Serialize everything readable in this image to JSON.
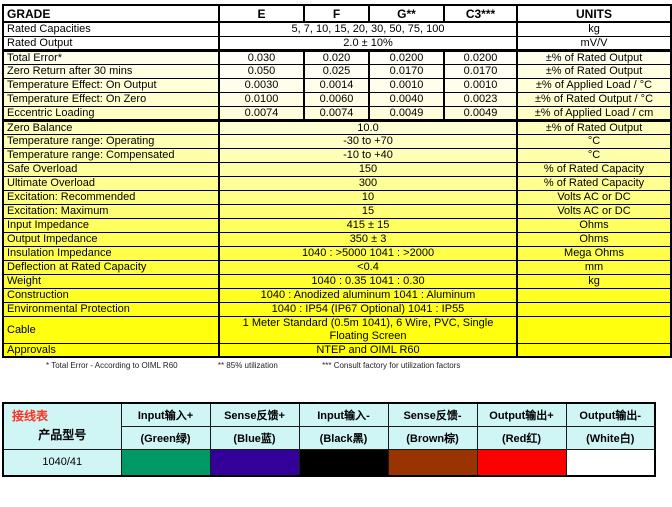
{
  "spec_table": {
    "header": {
      "grade": "GRADE",
      "cols": [
        "E",
        "F",
        "G**",
        "C3***"
      ],
      "units": "UNITS"
    },
    "rows": [
      {
        "label": "Rated Capacities",
        "value": "5, 7, 10, 15, 20, 30, 50, 75, 100",
        "unit": "kg",
        "bg": "#FFFFFF",
        "vbg": "#FFFFFF"
      },
      {
        "label": "Rated Output",
        "value": "2.0 ± 10%",
        "unit": "mV/V",
        "bg": "#FFFFFF",
        "vbg": "#FFFFFF",
        "tb": true
      },
      {
        "label": "Total Error*",
        "values": [
          "0.030",
          "0.020",
          "0.0200",
          "0.0200"
        ],
        "unit": "±% of Rated Output",
        "bg": "#FFFFEC",
        "vbg": "#FFFEF8"
      },
      {
        "label": "Zero Return after 30 mins",
        "values": [
          "0.050",
          "0.025",
          "0.0170",
          "0.0170"
        ],
        "unit": "±% of Rated Output",
        "bg": "#FFFFE2",
        "vbg": "#FFFEF2"
      },
      {
        "label": "Temperature Effect: On Output",
        "values": [
          "0.0030",
          "0.0014",
          "0.0010",
          "0.0010"
        ],
        "unit": "±% of Applied Load / °C",
        "bg": "#FFFFD8",
        "vbg": "#FFFEEC"
      },
      {
        "label": "Temperature Effect: On Zero",
        "values": [
          "0.0100",
          "0.0060",
          "0.0040",
          "0.0023"
        ],
        "unit": "±% of Rated Output / °C",
        "bg": "#FFFFCE",
        "vbg": "#FFFDE4"
      },
      {
        "label": "Eccentric Loading",
        "values": [
          "0.0074",
          "0.0074",
          "0.0049",
          "0.0049"
        ],
        "unit": "±% of Applied Load / cm",
        "bg": "#FFFFC4",
        "vbg": "#FFFCDC",
        "tb": true
      },
      {
        "label": "Zero Balance",
        "value": "10.0",
        "unit": "±% of Rated Output",
        "bg": "#FFFFBE",
        "vbg": "#FFFFD4"
      },
      {
        "label": "Temperature range: Operating",
        "value": "-30 to +70",
        "unit": "°C",
        "bg": "#FFFFB4",
        "vbg": "#FFFFC6"
      },
      {
        "label": "Temperature range: Compensated",
        "value": "-10 to +40",
        "unit": "°C",
        "bg": "#FFFFAA",
        "vbg": "#FFFFB8"
      },
      {
        "label": "Safe Overload",
        "value": "150",
        "unit": "% of Rated Capacity",
        "bg": "#FFFF9E",
        "vbg": "#FFFFA8"
      },
      {
        "label": "Ultimate Overload",
        "value": "300",
        "unit": "% of Rated Capacity",
        "bg": "#FFFF92",
        "vbg": "#FFFF98"
      },
      {
        "label": "Excitation: Recommended",
        "value": "10",
        "unit": "Volts AC or DC",
        "bg": "#FFFF84",
        "vbg": "#FFFF88"
      },
      {
        "label": "Excitation: Maximum",
        "value": "15",
        "unit": "Volts AC or DC",
        "bg": "#FFFF76",
        "vbg": "#FFFF78"
      },
      {
        "label": "Input Impedance",
        "value": "415 ± 15",
        "unit": "Ohms",
        "bg": "#FFFF60",
        "vbg": "#FFFF60"
      },
      {
        "label": "Output Impedance",
        "value": "350 ± 3",
        "unit": "Ohms",
        "bg": "#FFFF55",
        "vbg": "#FFFF55"
      },
      {
        "label": "Insulation Impedance",
        "value": "1040 : >5000 1041 : >2000",
        "unit": "Mega Ohms",
        "bg": "#FFFF4A",
        "vbg": "#FFFF4A"
      },
      {
        "label": "Deflection at Rated Capacity",
        "value": "<0.4",
        "unit": "mm",
        "bg": "#FFFF3E",
        "vbg": "#FFFF3E"
      },
      {
        "label": "Weight",
        "value": "1040 : 0.35 1041 : 0.30",
        "unit": "kg",
        "bg": "#FFFF32",
        "vbg": "#FFFF32"
      },
      {
        "label": "Construction",
        "value": "1040 : Anodized aluminum 1041 : Aluminum",
        "unit": "",
        "bg": "#FFFF26",
        "vbg": "#FFFF26"
      },
      {
        "label": "Environmental Protection",
        "value": "1040 : IP54 (IP67 Optional) 1041 : IP55",
        "unit": "",
        "bg": "#FFFF1A",
        "vbg": "#FFFF1A"
      },
      {
        "label": "Cable",
        "value": "1 Meter Standard (0.5m 1041), 6 Wire, PVC, Single Floating Screen",
        "unit": "",
        "bg": "#FFFF0E",
        "vbg": "#FFFF0E",
        "wrap": true
      },
      {
        "label": "Approvals",
        "value": "NTEP and OIML R60",
        "unit": "",
        "bg": "#FFFF00",
        "vbg": "#FFFF00"
      }
    ],
    "footnotes": [
      "* Total Error - According to OIML R60",
      "** 85% utilization",
      "*** Consult factory for utilization factors"
    ]
  },
  "wiring_table": {
    "title": "接线表",
    "title_color": "#FF3322",
    "model_label": "产品型号",
    "model": "1040/41",
    "bg": "#CFF5F5",
    "signals": [
      "Input输入+",
      "Sense反馈+",
      "Input输入-",
      "Sense反馈-",
      "Output输出+",
      "Output输出-"
    ],
    "wires": [
      {
        "label": "(Green绿)",
        "hex": "#009966"
      },
      {
        "label": "(Blue蓝)",
        "hex": "#330099"
      },
      {
        "label": "(Black黑)",
        "hex": "#000000"
      },
      {
        "label": "(Brown棕)",
        "hex": "#993300"
      },
      {
        "label": "(Red红)",
        "hex": "#FF0000"
      },
      {
        "label": "(White白)",
        "hex": "#FFFFFF"
      }
    ]
  }
}
